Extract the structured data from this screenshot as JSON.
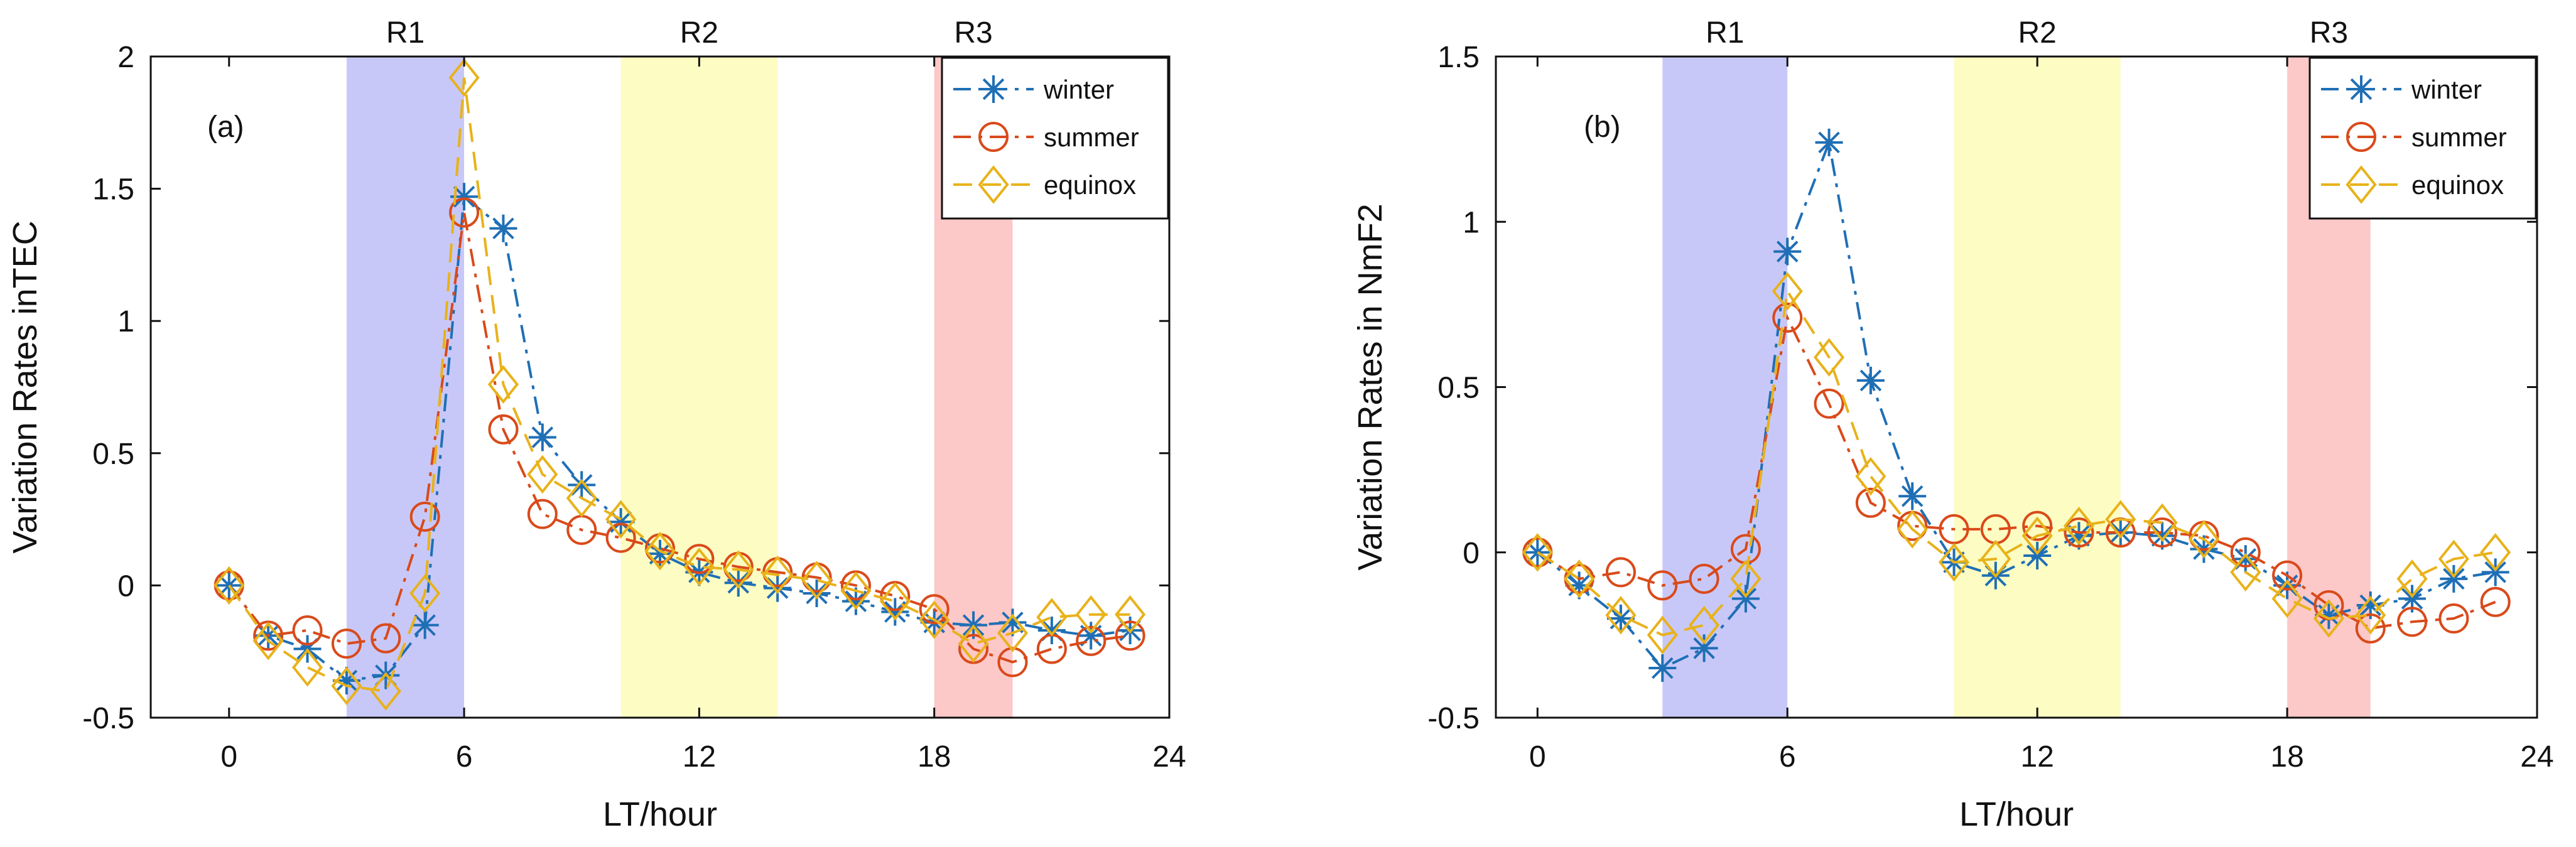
{
  "chart_data": [
    {
      "type": "line",
      "panel_label": "(a)",
      "xlabel": "LT/hour",
      "ylabel": "Variation Rates inTEC",
      "xlim": [
        -2,
        24
      ],
      "ylim": [
        -0.5,
        2
      ],
      "xticks": [
        0,
        6,
        12,
        18,
        24
      ],
      "xtick_labels": [
        "0",
        "6",
        "12",
        "18",
        "24"
      ],
      "yticks": [
        -0.5,
        0,
        0.5,
        1,
        1.5,
        2
      ],
      "ytick_labels": [
        "-0.5",
        "0",
        "0.5",
        "1",
        "1.5",
        "2"
      ],
      "regions": [
        {
          "label": "R1",
          "x0": 3,
          "x1": 6,
          "color": "#c8c8f8"
        },
        {
          "label": "R2",
          "x0": 10,
          "x1": 14,
          "color": "#fdfdc3"
        },
        {
          "label": "R3",
          "x0": 18,
          "x1": 20,
          "color": "#fdc8c8"
        }
      ],
      "legend_position": "top-right",
      "x": [
        0,
        1,
        2,
        3,
        4,
        5,
        6,
        7,
        8,
        9,
        10,
        11,
        12,
        13,
        14,
        15,
        16,
        17,
        18,
        19,
        20,
        21,
        22,
        23
      ],
      "series": [
        {
          "name": "winter",
          "color": "#1f6fb5",
          "marker": "asterisk",
          "dash": "dashdot",
          "values": [
            0,
            -0.19,
            -0.24,
            -0.36,
            -0.34,
            -0.15,
            1.47,
            1.35,
            0.56,
            0.38,
            0.24,
            0.12,
            0.05,
            0.01,
            -0.01,
            -0.03,
            -0.06,
            -0.1,
            -0.14,
            -0.15,
            -0.14,
            -0.17,
            -0.19,
            -0.17
          ]
        },
        {
          "name": "summer",
          "color": "#d94a1a",
          "marker": "circle",
          "dash": "dashdot",
          "values": [
            0,
            -0.19,
            -0.17,
            -0.22,
            -0.2,
            0.26,
            1.41,
            0.59,
            0.27,
            0.21,
            0.18,
            0.14,
            0.1,
            0.07,
            0.05,
            0.03,
            0.0,
            -0.04,
            -0.09,
            -0.24,
            -0.29,
            -0.24,
            -0.21,
            -0.19
          ]
        },
        {
          "name": "equinox",
          "color": "#e8b21a",
          "marker": "diamond",
          "dash": "dash",
          "values": [
            0,
            -0.21,
            -0.31,
            -0.38,
            -0.4,
            -0.03,
            1.92,
            0.76,
            0.42,
            0.33,
            0.25,
            0.13,
            0.07,
            0.06,
            0.04,
            0.02,
            -0.02,
            -0.06,
            -0.13,
            -0.22,
            -0.18,
            -0.12,
            -0.11,
            -0.11
          ]
        }
      ]
    },
    {
      "type": "line",
      "panel_label": "(b)",
      "xlabel": "LT/hour",
      "ylabel": "Variation Rates in NmF2",
      "xlim": [
        -1,
        24
      ],
      "ylim": [
        -0.5,
        1.5
      ],
      "xticks": [
        0,
        6,
        12,
        18,
        24
      ],
      "xtick_labels": [
        "0",
        "6",
        "12",
        "18",
        "24"
      ],
      "yticks": [
        -0.5,
        0,
        0.5,
        1,
        1.5
      ],
      "ytick_labels": [
        "-0.5",
        "0",
        "0.5",
        "1",
        "1.5"
      ],
      "regions": [
        {
          "label": "R1",
          "x0": 3,
          "x1": 6,
          "color": "#c8c8f8"
        },
        {
          "label": "R2",
          "x0": 10,
          "x1": 14,
          "color": "#fdfdc3"
        },
        {
          "label": "R3",
          "x0": 18,
          "x1": 20,
          "color": "#fdc8c8"
        }
      ],
      "legend_position": "top-right",
      "x": [
        0,
        1,
        2,
        3,
        4,
        5,
        6,
        7,
        8,
        9,
        10,
        11,
        12,
        13,
        14,
        15,
        16,
        17,
        18,
        19,
        20,
        21,
        22,
        23
      ],
      "series": [
        {
          "name": "winter",
          "color": "#1f6fb5",
          "marker": "asterisk",
          "dash": "dashdot",
          "values": [
            0,
            -0.1,
            -0.2,
            -0.35,
            -0.29,
            -0.14,
            0.91,
            1.24,
            0.52,
            0.17,
            -0.03,
            -0.07,
            -0.01,
            0.05,
            0.06,
            0.05,
            0.01,
            -0.02,
            -0.1,
            -0.19,
            -0.16,
            -0.14,
            -0.08,
            -0.06
          ]
        },
        {
          "name": "summer",
          "color": "#d94a1a",
          "marker": "circle",
          "dash": "dashdot",
          "values": [
            0,
            -0.08,
            -0.06,
            -0.1,
            -0.08,
            0.01,
            0.71,
            0.45,
            0.15,
            0.08,
            0.07,
            0.07,
            0.08,
            0.06,
            0.06,
            0.06,
            0.05,
            0.0,
            -0.07,
            -0.16,
            -0.23,
            -0.21,
            -0.2,
            -0.15
          ]
        },
        {
          "name": "equinox",
          "color": "#e8b21a",
          "marker": "diamond",
          "dash": "dash",
          "values": [
            0,
            -0.08,
            -0.19,
            -0.25,
            -0.22,
            -0.08,
            0.79,
            0.59,
            0.23,
            0.07,
            -0.03,
            -0.02,
            0.05,
            0.08,
            0.1,
            0.09,
            0.04,
            -0.06,
            -0.14,
            -0.2,
            -0.19,
            -0.08,
            -0.02,
            0.0
          ]
        }
      ]
    }
  ]
}
